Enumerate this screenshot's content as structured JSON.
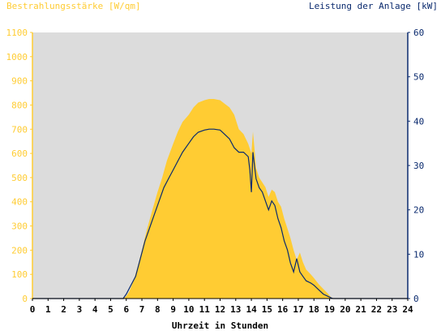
{
  "chart_data": {
    "type": "area",
    "left_axis_label": "Bestrahlungsstärke [W/qm]",
    "right_axis_label": "Leistung der Anlage [kW]",
    "xlabel": "Uhrzeit in Stunden",
    "x_ticks": [
      "0",
      "1",
      "2",
      "3",
      "4",
      "5",
      "6",
      "7",
      "8",
      "9",
      "10",
      "11",
      "12",
      "13",
      "14",
      "15",
      "16",
      "17",
      "18",
      "19",
      "20",
      "21",
      "22",
      "23",
      "24"
    ],
    "xlim": [
      0,
      24
    ],
    "ylim_left": [
      0,
      1100
    ],
    "ylim_right": [
      0,
      60
    ],
    "y_ticks_left": [
      "0",
      "100",
      "200",
      "300",
      "400",
      "500",
      "600",
      "700",
      "800",
      "900",
      "1000",
      "1100"
    ],
    "y_ticks_right": [
      "0",
      "10",
      "20",
      "30",
      "40",
      "50",
      "60"
    ],
    "grid": false,
    "series": [
      {
        "name": "Bestrahlungsstärke [W/qm]",
        "axis": "left",
        "style": "area",
        "color": "#ffcc33",
        "x": [
          0,
          5.8,
          6.0,
          6.2,
          6.5,
          6.8,
          7.0,
          7.3,
          7.6,
          8.0,
          8.3,
          8.6,
          9.0,
          9.3,
          9.6,
          10.0,
          10.3,
          10.6,
          11.0,
          11.3,
          11.6,
          12.0,
          12.3,
          12.6,
          12.9,
          13.2,
          13.5,
          13.8,
          14.0,
          14.1,
          14.2,
          14.3,
          14.5,
          14.7,
          14.9,
          15.1,
          15.3,
          15.5,
          15.7,
          15.9,
          16.1,
          16.3,
          16.5,
          16.7,
          16.9,
          17.1,
          17.3,
          17.5,
          17.8,
          18.0,
          18.3,
          18.6,
          18.9,
          19.1,
          19.3,
          24
        ],
        "y": [
          0,
          0,
          10,
          30,
          80,
          150,
          200,
          280,
          350,
          440,
          500,
          570,
          640,
          690,
          730,
          760,
          790,
          810,
          820,
          825,
          825,
          820,
          805,
          790,
          760,
          700,
          680,
          640,
          600,
          690,
          620,
          540,
          500,
          480,
          460,
          420,
          450,
          440,
          400,
          380,
          330,
          290,
          250,
          200,
          160,
          190,
          150,
          120,
          100,
          85,
          60,
          40,
          20,
          5,
          0,
          0
        ]
      },
      {
        "name": "Leistung der Anlage [kW]",
        "axis": "right",
        "style": "line",
        "color": "#0a2a6e",
        "x": [
          0,
          5.8,
          6.0,
          6.3,
          6.6,
          6.9,
          7.2,
          7.5,
          7.8,
          8.1,
          8.4,
          8.7,
          9.0,
          9.3,
          9.6,
          10.0,
          10.3,
          10.6,
          11.0,
          11.3,
          11.6,
          12.0,
          12.3,
          12.6,
          12.9,
          13.2,
          13.5,
          13.8,
          13.9,
          14.0,
          14.1,
          14.2,
          14.3,
          14.5,
          14.7,
          14.9,
          15.1,
          15.3,
          15.5,
          15.7,
          15.9,
          16.1,
          16.3,
          16.5,
          16.7,
          16.9,
          17.1,
          17.3,
          17.5,
          17.8,
          18.0,
          18.3,
          18.6,
          18.9,
          19.2,
          24
        ],
        "y": [
          0,
          0,
          1,
          3,
          5,
          9,
          13,
          16,
          19,
          22,
          25,
          27,
          29,
          31,
          33,
          35,
          36.5,
          37.5,
          38,
          38.2,
          38.2,
          38,
          37,
          36,
          34,
          33,
          33,
          32,
          29,
          24,
          33,
          30,
          27,
          25,
          24,
          22,
          20,
          22,
          21,
          18,
          16,
          13,
          11,
          8,
          6,
          9,
          6,
          5,
          4,
          3.5,
          3,
          2,
          1,
          0.5,
          0,
          0
        ]
      }
    ]
  }
}
